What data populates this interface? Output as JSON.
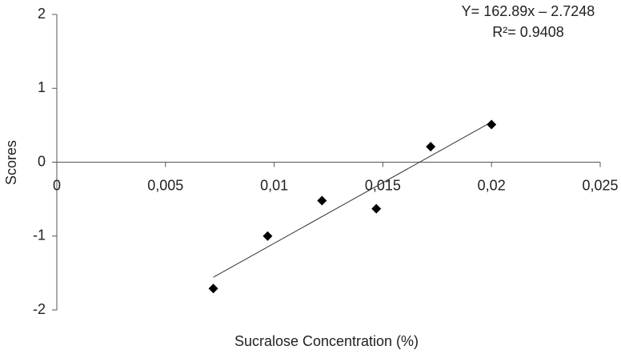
{
  "chart_data": {
    "type": "scatter",
    "x_label": "Sucralose Concentration (%)",
    "y_label": "Scores",
    "annotations": [
      "Y= 162.89x – 2.7248",
      "R²= 0.9408"
    ],
    "x": [
      0.0072,
      0.0097,
      0.0122,
      0.0147,
      0.0172,
      0.02
    ],
    "values": [
      -1.71,
      -1.0,
      -0.52,
      -0.63,
      0.21,
      0.51
    ],
    "color": "#000000",
    "trendline": true,
    "xlim": [
      0,
      0.025
    ],
    "xticks": [
      0,
      {
        "value": 0.005,
        "label": "0,005"
      },
      {
        "value": 0.01,
        "label": "0,01"
      },
      {
        "value": 0.015,
        "label": "0,015"
      },
      {
        "value": 0.02,
        "label": "0,02"
      },
      {
        "value": 0.025,
        "label": "0,025"
      }
    ],
    "ylim": [
      -2,
      2
    ],
    "yticks": [
      -2,
      -1,
      0,
      1,
      2
    ]
  }
}
